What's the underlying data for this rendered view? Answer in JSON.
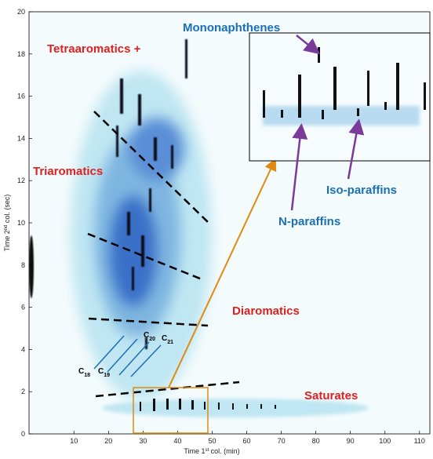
{
  "chart_data": {
    "type": "heatmap",
    "x_label": {
      "pre": "Time 1",
      "sup": "st",
      "post": " col. (min)"
    },
    "y_label": {
      "pre": "Time 2",
      "sup": "nd",
      "post": " col. (sec)"
    },
    "xlim": [
      -3,
      113
    ],
    "ylim": [
      0,
      20
    ],
    "xticks": [
      10,
      20,
      30,
      40,
      50,
      60,
      70,
      80,
      90,
      100,
      110
    ],
    "yticks": [
      0,
      2,
      4,
      6,
      8,
      10,
      12,
      14,
      16,
      18,
      20
    ],
    "regions": [
      "Tetraaromatics +",
      "Triaromatics",
      "Diaromatics",
      "Saturates"
    ],
    "inset_labels": [
      "Mononaphthenes",
      "Iso-paraffins",
      "N-paraffins"
    ],
    "carbon_labels": [
      {
        "base": "C",
        "sub": "18"
      },
      {
        "base": "C",
        "sub": "19"
      },
      {
        "base": "C",
        "sub": "20"
      },
      {
        "base": "C",
        "sub": "21"
      }
    ]
  }
}
